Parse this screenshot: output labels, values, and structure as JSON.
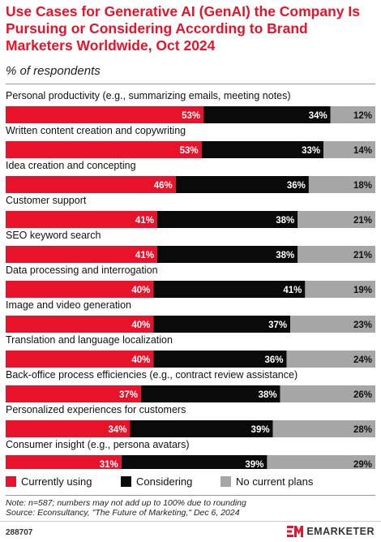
{
  "title": "Use Cases for Generative AI (GenAI) the Company Is Pursuing or Considering According to Brand Marketers Worldwide, Oct 2024",
  "subtitle": "% of respondents",
  "colors": {
    "currently": "#e8132b",
    "considering": "#0a0a0a",
    "no_plans": "#a6a6a6",
    "title": "#e8132b"
  },
  "chart_data": {
    "type": "bar",
    "orientation": "horizontal",
    "stacked": true,
    "unit": "%",
    "categories": [
      "Personal productivity (e.g., summarizing emails, meeting notes)",
      "Written content creation and copywriting",
      "Idea creation and concepting",
      "Customer support",
      "SEO keyword search",
      "Data processing and interrogation",
      "Image and video generation",
      "Translation and language localization",
      "Back-office process efficiencies (e.g., contract review assistance)",
      "Personalized experiences for customers",
      "Consumer insight (e.g., persona avatars)"
    ],
    "series": [
      {
        "name": "Currently using",
        "values": [
          53,
          53,
          46,
          41,
          41,
          40,
          40,
          40,
          37,
          34,
          31
        ]
      },
      {
        "name": "Considering",
        "values": [
          34,
          33,
          36,
          38,
          38,
          41,
          37,
          36,
          38,
          39,
          39
        ]
      },
      {
        "name": "No current plans",
        "values": [
          12,
          14,
          18,
          21,
          21,
          19,
          23,
          24,
          26,
          28,
          29
        ]
      }
    ],
    "legend_position": "bottom-left"
  },
  "legend": [
    "Currently using",
    "Considering",
    "No current plans"
  ],
  "note": "Note: n=587; numbers may not add up to 100% due to rounding",
  "source": "Source: Econsultancy, \"The Future of Marketing,\" Dec 6, 2024",
  "chart_id": "288707",
  "brand": "EMARKETER"
}
